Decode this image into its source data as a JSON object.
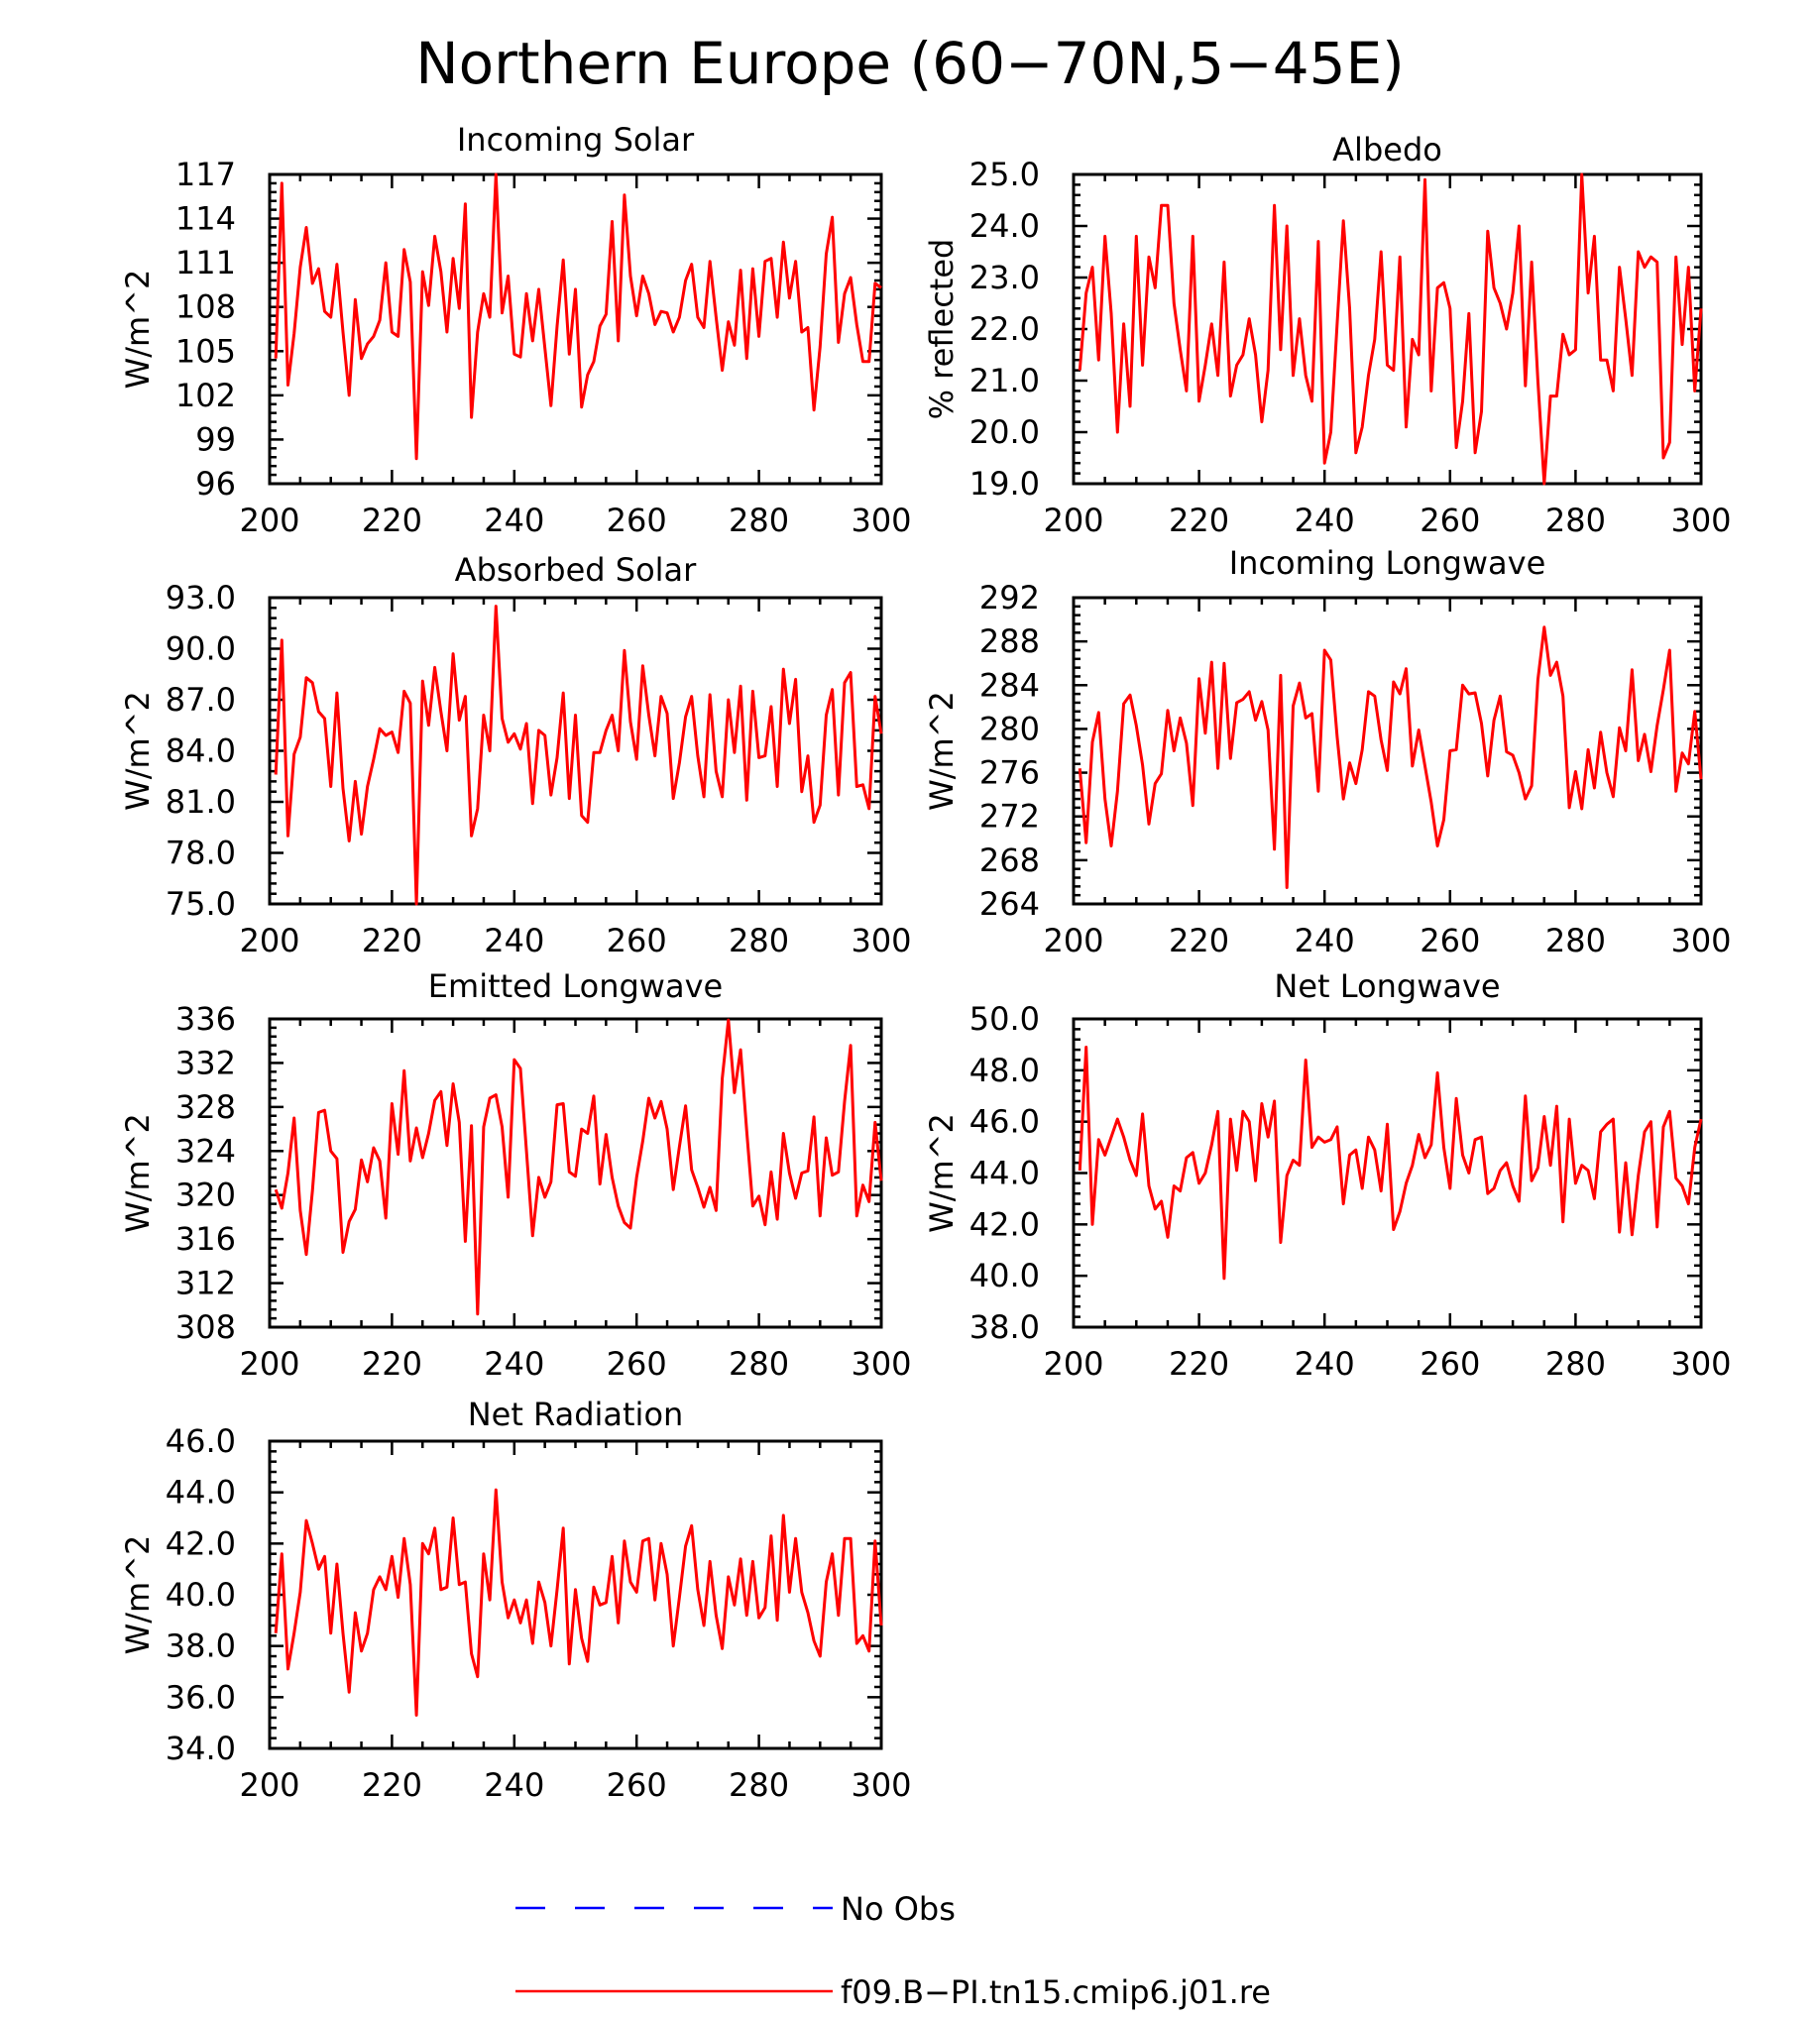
{
  "title": "Northern Europe (60−70N,5−45E)",
  "legend": [
    {
      "label": "No Obs",
      "color": "#0000ff",
      "style": "dashed"
    },
    {
      "label": "f09.B−PI.tn15.cmip6.j01.re",
      "color": "#ff0000",
      "style": "solid"
    }
  ],
  "chart_data": [
    {
      "type": "line",
      "title": "Incoming Solar",
      "ylabel": "W/m^2",
      "xlim": [
        200,
        300
      ],
      "ylim": [
        96,
        117
      ],
      "xticks": [
        200,
        220,
        240,
        260,
        280,
        300
      ],
      "yticks": [
        "96",
        "99",
        "102",
        "105",
        "108",
        "111",
        "114",
        "117"
      ],
      "series": [
        {
          "name": "f09.B−PI.tn15.cmip6.j01.re",
          "color": "#ff0000",
          "x_start": 201,
          "values": [
            104.5,
            116.4,
            102.7,
            106.2,
            110.7,
            113.4,
            109.6,
            110.6,
            107.7,
            107.3,
            110.9,
            106.3,
            102.0,
            108.5,
            104.5,
            105.5,
            106.0,
            107.1,
            111.0,
            106.3,
            106.0,
            111.9,
            109.7,
            97.7,
            110.4,
            108.1,
            112.8,
            110.4,
            106.3,
            111.3,
            107.9,
            115.0,
            100.5,
            106.3,
            108.9,
            107.3,
            117.0,
            107.6,
            110.1,
            104.8,
            104.6,
            108.9,
            105.7,
            109.2,
            105.2,
            101.3,
            106.7,
            111.2,
            104.8,
            109.2,
            101.2,
            103.4,
            104.3,
            106.7,
            107.5,
            113.8,
            105.7,
            115.6,
            110.1,
            107.4,
            110.1,
            108.9,
            106.8,
            107.7,
            107.6,
            106.3,
            107.3,
            109.8,
            110.9,
            107.3,
            106.6,
            111.1,
            107.3,
            103.7,
            107.0,
            105.4,
            110.5,
            104.5,
            110.6,
            106.0,
            111.1,
            111.3,
            107.3,
            112.4,
            108.6,
            111.1,
            106.3,
            106.6,
            101.0,
            105.3,
            111.6,
            114.1,
            105.6,
            108.9,
            110.0,
            106.8,
            104.3,
            104.3,
            109.6,
            109.3
          ]
        }
      ]
    },
    {
      "type": "line",
      "title": "Albedo",
      "ylabel": "% reflected",
      "xlim": [
        200,
        300
      ],
      "ylim": [
        19.0,
        25.0
      ],
      "xticks": [
        200,
        220,
        240,
        260,
        280,
        300
      ],
      "yticks": [
        "19.0",
        "20.0",
        "21.0",
        "22.0",
        "23.0",
        "24.0",
        "25.0"
      ],
      "series": [
        {
          "name": "f09.B−PI.tn15.cmip6.j01.re",
          "color": "#ff0000",
          "x_start": 201,
          "values": [
            21.2,
            22.7,
            23.2,
            21.4,
            23.8,
            22.3,
            20.0,
            22.1,
            20.5,
            23.8,
            21.3,
            23.4,
            22.8,
            24.4,
            24.4,
            22.5,
            21.6,
            20.8,
            23.8,
            20.6,
            21.3,
            22.1,
            21.1,
            23.3,
            20.7,
            21.3,
            21.5,
            22.2,
            21.5,
            20.2,
            21.2,
            24.4,
            21.6,
            24.0,
            21.1,
            22.2,
            21.1,
            20.6,
            23.7,
            19.4,
            20.0,
            22.1,
            24.1,
            22.4,
            19.6,
            20.1,
            21.1,
            21.8,
            23.5,
            21.3,
            21.2,
            23.4,
            20.1,
            21.8,
            21.5,
            24.9,
            20.8,
            22.8,
            22.9,
            22.4,
            19.7,
            20.6,
            22.3,
            19.6,
            20.4,
            23.9,
            22.8,
            22.5,
            22.0,
            22.7,
            24.0,
            20.9,
            23.3,
            21.0,
            19.0,
            20.7,
            20.7,
            21.9,
            21.5,
            21.6,
            25.0,
            22.7,
            23.8,
            21.4,
            21.4,
            20.8,
            23.2,
            22.2,
            21.1,
            23.5,
            23.2,
            23.4,
            23.3,
            19.5,
            19.8,
            23.4,
            21.7,
            23.2,
            20.8,
            22.4
          ]
        }
      ]
    },
    {
      "type": "line",
      "title": "Absorbed Solar",
      "ylabel": "W/m^2",
      "xlim": [
        200,
        300
      ],
      "ylim": [
        75.0,
        93.0
      ],
      "xticks": [
        200,
        220,
        240,
        260,
        280,
        300
      ],
      "yticks": [
        "75.0",
        "78.0",
        "81.0",
        "84.0",
        "87.0",
        "90.0",
        "93.0"
      ],
      "series": [
        {
          "name": "f09.B−PI.tn15.cmip6.j01.re",
          "color": "#ff0000",
          "x_start": 201,
          "values": [
            82.6,
            90.5,
            79.0,
            83.8,
            84.8,
            88.3,
            88.0,
            86.3,
            85.9,
            81.9,
            87.4,
            81.8,
            78.7,
            82.2,
            79.1,
            81.9,
            83.5,
            85.3,
            84.9,
            85.1,
            83.9,
            87.5,
            86.8,
            75.0,
            88.1,
            85.5,
            88.9,
            86.3,
            84.0,
            89.7,
            85.8,
            87.2,
            79.0,
            80.6,
            86.1,
            84.0,
            92.5,
            85.9,
            84.5,
            85.0,
            84.1,
            85.6,
            80.9,
            85.2,
            84.9,
            81.4,
            83.6,
            87.4,
            81.2,
            86.1,
            80.2,
            79.8,
            83.9,
            83.9,
            85.2,
            86.1,
            84.0,
            89.9,
            85.7,
            83.5,
            89.0,
            86.1,
            83.7,
            87.2,
            86.2,
            81.2,
            83.3,
            86.0,
            87.2,
            83.7,
            81.3,
            87.3,
            82.8,
            81.3,
            87.0,
            83.9,
            87.8,
            81.1,
            87.5,
            83.6,
            83.7,
            86.6,
            81.9,
            88.8,
            85.6,
            88.2,
            81.6,
            83.7,
            79.8,
            80.8,
            86.1,
            87.6,
            81.4,
            88.0,
            88.6,
            81.9,
            82.0,
            80.6,
            87.2,
            85.0
          ]
        }
      ]
    },
    {
      "type": "line",
      "title": "Incoming Longwave",
      "ylabel": "W/m^2",
      "xlim": [
        200,
        300
      ],
      "ylim": [
        264,
        292
      ],
      "xticks": [
        200,
        220,
        240,
        260,
        280,
        300
      ],
      "yticks": [
        "264",
        "268",
        "272",
        "276",
        "280",
        "284",
        "288",
        "292"
      ],
      "series": [
        {
          "name": "f09.B−PI.tn15.cmip6.j01.re",
          "color": "#ff0000",
          "x_start": 201,
          "values": [
            276.4,
            269.6,
            278.8,
            281.5,
            273.6,
            269.3,
            274.3,
            282.3,
            283.1,
            280.3,
            276.7,
            271.3,
            275.0,
            275.9,
            281.7,
            278.0,
            281.0,
            278.7,
            273.0,
            284.6,
            279.6,
            286.1,
            276.4,
            286.0,
            277.3,
            282.4,
            282.7,
            283.4,
            280.8,
            282.5,
            279.9,
            269.0,
            284.9,
            265.5,
            282.1,
            284.2,
            281.0,
            281.4,
            274.3,
            287.2,
            286.3,
            279.3,
            273.6,
            276.9,
            275.0,
            278.1,
            283.4,
            283.0,
            279.0,
            276.2,
            284.3,
            283.2,
            285.5,
            276.6,
            279.9,
            276.6,
            273.3,
            269.3,
            271.7,
            278.0,
            278.1,
            284.0,
            283.2,
            283.3,
            280.5,
            275.7,
            280.8,
            283.0,
            277.9,
            277.6,
            276.0,
            273.6,
            274.8,
            284.5,
            289.3,
            284.9,
            286.1,
            283.0,
            272.8,
            276.1,
            272.7,
            278.1,
            274.6,
            279.7,
            276.0,
            273.8,
            280.1,
            278.0,
            285.4,
            277.1,
            279.5,
            276.1,
            280.3,
            283.6,
            287.2,
            274.3,
            277.8,
            276.8,
            281.6,
            275.4
          ]
        }
      ]
    },
    {
      "type": "line",
      "title": "Emitted Longwave",
      "ylabel": "W/m^2",
      "xlim": [
        200,
        300
      ],
      "ylim": [
        308,
        336
      ],
      "xticks": [
        200,
        220,
        240,
        260,
        280,
        300
      ],
      "yticks": [
        "308",
        "312",
        "316",
        "320",
        "324",
        "328",
        "332",
        "336"
      ],
      "series": [
        {
          "name": "f09.B−PI.tn15.cmip6.j01.re",
          "color": "#ff0000",
          "x_start": 201,
          "values": [
            320.5,
            318.8,
            322.0,
            327.0,
            318.6,
            314.6,
            320.4,
            327.5,
            327.7,
            324.0,
            323.3,
            314.8,
            317.6,
            318.7,
            323.2,
            321.2,
            324.3,
            323.1,
            317.9,
            328.3,
            323.7,
            331.3,
            323.1,
            326.1,
            323.4,
            325.6,
            328.6,
            329.4,
            324.5,
            330.1,
            326.6,
            315.8,
            326.3,
            309.2,
            326.2,
            328.8,
            329.1,
            326.2,
            319.8,
            332.3,
            331.5,
            324.0,
            316.3,
            321.6,
            319.8,
            321.2,
            328.2,
            328.3,
            322.1,
            321.7,
            326.0,
            325.6,
            329.0,
            321.0,
            325.5,
            321.6,
            319.0,
            317.5,
            317.0,
            321.6,
            324.9,
            328.8,
            327.0,
            328.5,
            326.0,
            320.5,
            324.4,
            328.1,
            322.3,
            320.7,
            318.9,
            320.7,
            318.6,
            330.6,
            335.9,
            329.3,
            333.2,
            325.8,
            319.0,
            319.9,
            317.3,
            322.1,
            317.8,
            325.6,
            322.0,
            319.7,
            322.0,
            322.2,
            327.1,
            318.1,
            325.2,
            321.8,
            322.1,
            328.5,
            333.6,
            318.1,
            320.9,
            319.4,
            326.6,
            321.3
          ]
        }
      ]
    },
    {
      "type": "line",
      "title": "Net Longwave",
      "ylabel": "W/m^2",
      "xlim": [
        200,
        300
      ],
      "ylim": [
        38.0,
        50.0
      ],
      "xticks": [
        200,
        220,
        240,
        260,
        280,
        300
      ],
      "yticks": [
        "38.0",
        "40.0",
        "42.0",
        "44.0",
        "46.0",
        "48.0",
        "50.0"
      ],
      "series": [
        {
          "name": "f09.B−PI.tn15.cmip6.j01.re",
          "color": "#ff0000",
          "x_start": 201,
          "values": [
            44.1,
            48.9,
            42.0,
            45.3,
            44.7,
            45.4,
            46.1,
            45.4,
            44.5,
            43.9,
            46.3,
            43.5,
            42.6,
            42.9,
            41.5,
            43.5,
            43.3,
            44.6,
            44.8,
            43.6,
            44.0,
            45.1,
            46.4,
            39.9,
            46.1,
            44.1,
            46.4,
            46.0,
            43.7,
            46.7,
            45.4,
            46.8,
            41.3,
            43.9,
            44.5,
            44.3,
            48.4,
            45.0,
            45.4,
            45.2,
            45.3,
            45.8,
            42.8,
            44.7,
            44.9,
            43.4,
            45.4,
            44.9,
            43.3,
            45.9,
            41.8,
            42.5,
            43.6,
            44.3,
            45.5,
            44.6,
            45.1,
            47.9,
            45.0,
            43.4,
            46.9,
            44.7,
            44.0,
            45.3,
            45.4,
            43.2,
            43.4,
            44.1,
            44.4,
            43.5,
            42.9,
            47.0,
            43.7,
            44.2,
            46.2,
            44.3,
            46.6,
            42.1,
            46.1,
            43.6,
            44.3,
            44.1,
            43.0,
            45.6,
            45.9,
            46.1,
            41.7,
            44.4,
            41.6,
            43.9,
            45.6,
            46.0,
            41.9,
            45.8,
            46.4,
            43.8,
            43.5,
            42.8,
            45.0,
            46.1
          ]
        }
      ]
    },
    {
      "type": "line",
      "title": "Net Radiation",
      "ylabel": "W/m^2",
      "xlim": [
        200,
        300
      ],
      "ylim": [
        34.0,
        46.0
      ],
      "xticks": [
        200,
        220,
        240,
        260,
        280,
        300
      ],
      "yticks": [
        "34.0",
        "36.0",
        "38.0",
        "40.0",
        "42.0",
        "44.0",
        "46.0"
      ],
      "series": [
        {
          "name": "f09.B−PI.tn15.cmip6.j01.re",
          "color": "#ff0000",
          "x_start": 201,
          "values": [
            38.5,
            41.6,
            37.1,
            38.5,
            40.1,
            42.9,
            42.0,
            41.0,
            41.5,
            38.5,
            41.2,
            38.5,
            36.2,
            39.3,
            37.8,
            38.5,
            40.2,
            40.7,
            40.2,
            41.5,
            39.9,
            42.2,
            40.4,
            35.3,
            42.0,
            41.6,
            42.6,
            40.2,
            40.3,
            43.0,
            40.4,
            40.5,
            37.7,
            36.8,
            41.6,
            39.8,
            44.1,
            40.5,
            39.1,
            39.8,
            38.9,
            39.8,
            38.1,
            40.5,
            39.7,
            38.0,
            40.2,
            42.6,
            37.3,
            40.2,
            38.3,
            37.4,
            40.3,
            39.6,
            39.7,
            41.5,
            38.9,
            42.1,
            40.5,
            40.1,
            42.1,
            42.2,
            39.8,
            42.0,
            40.8,
            38.0,
            39.9,
            41.9,
            42.7,
            40.2,
            38.8,
            41.3,
            39.2,
            37.9,
            40.7,
            39.6,
            41.4,
            39.2,
            41.3,
            39.1,
            39.5,
            42.3,
            39.0,
            43.1,
            40.1,
            42.2,
            40.1,
            39.3,
            38.2,
            37.6,
            40.5,
            41.6,
            39.2,
            42.2,
            42.2,
            38.1,
            38.4,
            37.8,
            42.1,
            38.8
          ]
        }
      ]
    }
  ]
}
